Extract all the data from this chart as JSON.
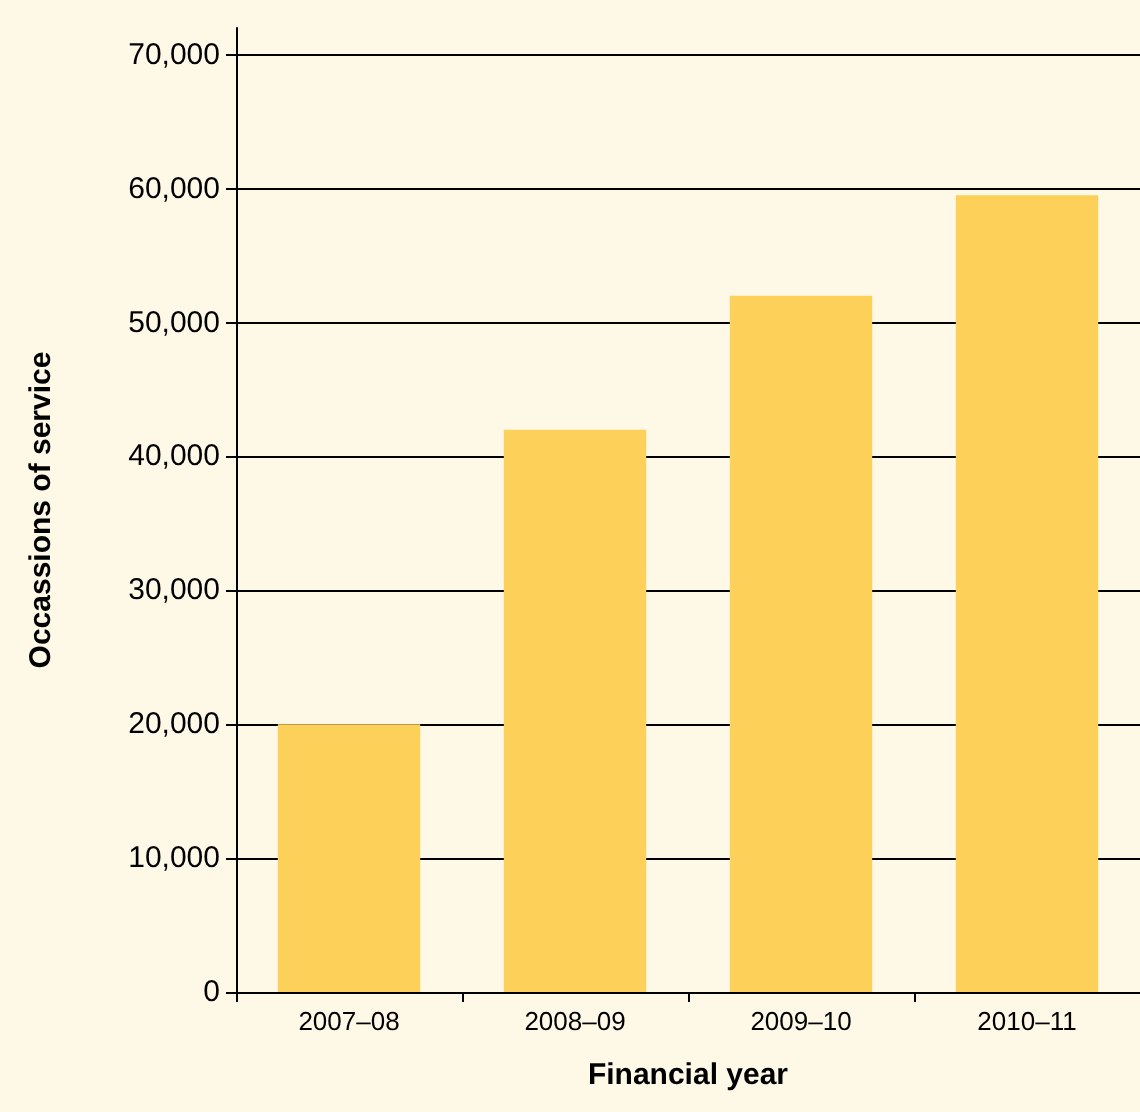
{
  "chart_data": {
    "type": "bar",
    "xlabel": "Financial year",
    "ylabel": "Occassions of service",
    "categories": [
      "2007–08",
      "2008–09",
      "2009–10",
      "2010–11"
    ],
    "values": [
      20000,
      42000,
      52000,
      59500
    ],
    "color": "#fdd05a",
    "ylim": [
      0,
      72000
    ],
    "yticks": [
      0,
      {
        "value": 10000,
        "label": "10,000"
      },
      {
        "value": 20000,
        "label": "20,000"
      },
      {
        "value": 30000,
        "label": "30,000"
      },
      {
        "value": 40000,
        "label": "40,000"
      },
      {
        "value": 50000,
        "label": "50,000"
      },
      {
        "value": 60000,
        "label": "60,000"
      },
      {
        "value": 70000,
        "label": "70,000"
      }
    ],
    "grid": "y"
  }
}
